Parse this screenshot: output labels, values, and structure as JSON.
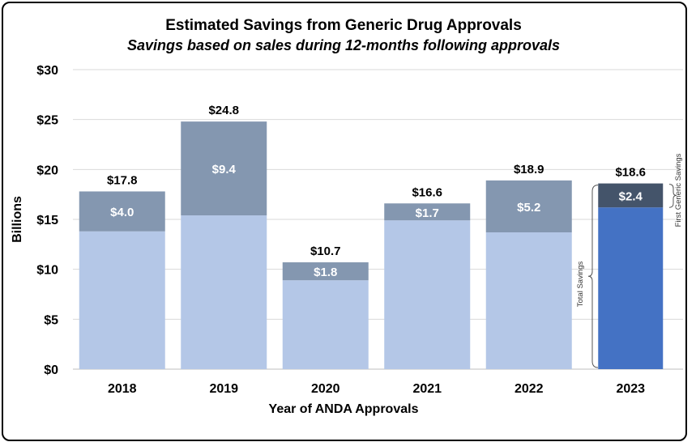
{
  "chart_data": {
    "type": "bar",
    "stacked": true,
    "title": "Estimated Savings from Generic Drug Approvals",
    "subtitle": "Savings based on sales during 12-months following approvals",
    "xlabel": "Year of ANDA Approvals",
    "ylabel": "Billions",
    "ylim": [
      0,
      30
    ],
    "yticks": [
      "$0",
      "$5",
      "$10",
      "$15",
      "$20",
      "$25",
      "$30"
    ],
    "ytick_values": [
      0,
      5,
      10,
      15,
      20,
      25,
      30
    ],
    "grid": true,
    "categories": [
      "2018",
      "2019",
      "2020",
      "2021",
      "2022",
      "2023"
    ],
    "totals": [
      17.8,
      24.8,
      10.7,
      16.6,
      18.9,
      18.6
    ],
    "total_labels": [
      "$17.8",
      "$24.8",
      "$10.7",
      "$16.6",
      "$18.9",
      "$18.6"
    ],
    "first_generic": [
      4.0,
      9.4,
      1.8,
      1.7,
      5.2,
      2.4
    ],
    "first_generic_labels": [
      "$4.0",
      "$9.4",
      "$1.8",
      "$1.7",
      "$5.2",
      "$2.4"
    ],
    "annotations": {
      "total_brace": "Total Savings",
      "first_generic_brace": "First Generic Savings"
    },
    "colors": {
      "base": "#b4c7e7",
      "top": "#8497b0",
      "highlight_base": "#4472c4",
      "highlight_top": "#44546a",
      "grid": "#d9d9d9"
    }
  }
}
